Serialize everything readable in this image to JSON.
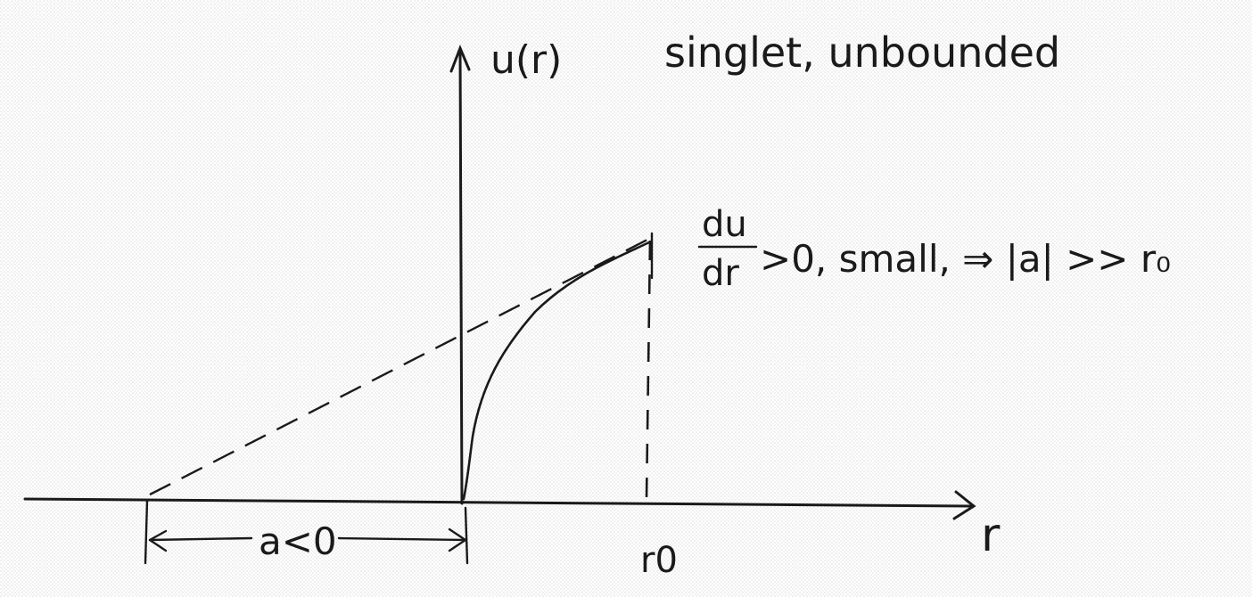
{
  "labels": {
    "y_axis": "u(r)",
    "title": "singlet, unbounded",
    "x_axis": "r",
    "r0": "r0",
    "a_label": "a<0",
    "deriv_num": "du",
    "deriv_den": "dr",
    "condition": ">0, small, ⇒ |a| >> r₀"
  },
  "colors": {
    "ink": "#1a1a1a",
    "paper": "#ffffff"
  }
}
